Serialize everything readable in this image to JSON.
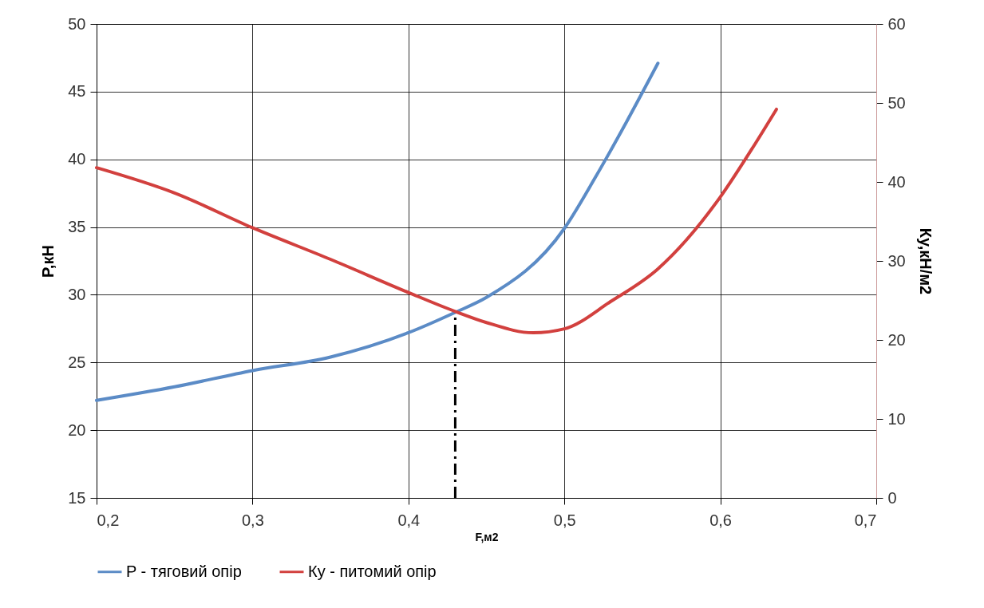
{
  "chart_data": {
    "type": "line",
    "xlabel": "F,м2",
    "ylabel": "P,кН",
    "y2label": "Ку,кН/м2",
    "xlim": [
      0.2,
      0.7
    ],
    "xticks": [
      {
        "value": 0.2,
        "label": "0,2"
      },
      {
        "value": 0.3,
        "label": "0,3"
      },
      {
        "value": 0.4,
        "label": "0,4"
      },
      {
        "value": 0.5,
        "label": "0,5"
      },
      {
        "value": 0.6,
        "label": "0,6"
      },
      {
        "value": 0.7,
        "label": "0,7"
      }
    ],
    "ylim": [
      15,
      50
    ],
    "yticks": [
      15,
      20,
      25,
      30,
      35,
      40,
      45,
      50
    ],
    "y2lim": [
      0,
      60
    ],
    "y2ticks": [
      0,
      10,
      20,
      30,
      40,
      50,
      60
    ],
    "grid": true,
    "legend": "bottom",
    "line_style": "solid",
    "marker": "none",
    "series": [
      {
        "name": "P - тяговий опір",
        "color": "#5b8bc6",
        "x": [
          0.2,
          0.25,
          0.3,
          0.35,
          0.4,
          0.43,
          0.45,
          0.5,
          0.52,
          0.54,
          0.56
        ],
        "values": [
          22.2,
          23.2,
          24.4,
          25.4,
          27.2,
          28.7,
          29.8,
          34.9,
          38.7,
          42.8,
          47.1
        ]
      },
      {
        "name": "Ку - питомий опір",
        "color": "#d2403e",
        "axis": "y2",
        "x": [
          0.2,
          0.25,
          0.3,
          0.35,
          0.4,
          0.43,
          0.45,
          0.48,
          0.5,
          0.53,
          0.56,
          0.6,
          0.62,
          0.636
        ],
        "values": [
          41.8,
          38.6,
          34.2,
          30.2,
          26,
          23.6,
          22.2,
          20.9,
          21.4,
          24.9,
          29,
          38.1,
          44.1,
          49.2
        ]
      }
    ],
    "ref_lines": [
      {
        "axis": "x",
        "value": 0.43,
        "color": "#000000",
        "line_style": "dashed"
      }
    ]
  }
}
